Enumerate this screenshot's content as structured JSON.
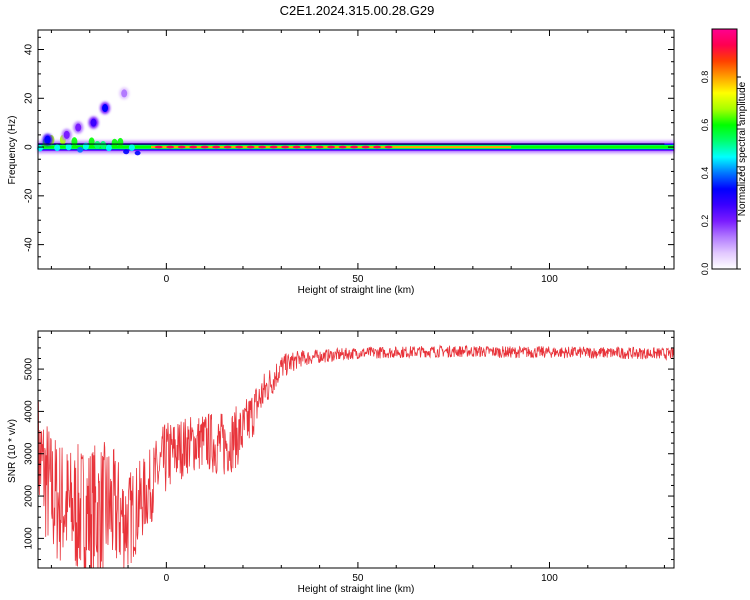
{
  "title": "C2E1.2024.315.00.28.G29",
  "chart_data": [
    {
      "type": "heatmap",
      "xlabel": "Height of straight line (km)",
      "ylabel": "Frequency (Hz)",
      "xlim": [
        -33.5,
        132.5
      ],
      "ylim": [
        -50,
        48
      ],
      "xticks": [
        0,
        50,
        100
      ],
      "yticks": [
        40,
        20,
        0,
        -20,
        -40
      ],
      "grid": false,
      "colorbar": {
        "label": "Normalized spectral amplitude",
        "range": [
          0,
          1
        ],
        "ticks": [
          0.0,
          0.2,
          0.4,
          0.6,
          0.8
        ],
        "colors": [
          "#ffffff",
          "#e2c8ff",
          "#b27aff",
          "#7a1cff",
          "#3a00ff",
          "#0000ff",
          "#0077ff",
          "#00ffff",
          "#00ff70",
          "#00ff00",
          "#a8ff00",
          "#ffff00",
          "#ffa000",
          "#ff4000",
          "#ff0050",
          "#ff0090"
        ]
      },
      "ridge": {
        "frequency": 0,
        "x_start": -33.5,
        "x_end": 132.5
      },
      "blobs": [
        {
          "x": -16,
          "y": 16,
          "value": 0.3
        },
        {
          "x": -19,
          "y": 10,
          "value": 0.25
        },
        {
          "x": -23,
          "y": 8,
          "value": 0.22
        },
        {
          "x": -26,
          "y": 5,
          "value": 0.2
        },
        {
          "x": -11,
          "y": 22,
          "value": 0.1
        },
        {
          "x": -31,
          "y": 3,
          "value": 0.35
        }
      ]
    },
    {
      "type": "line",
      "xlabel": "Height of straight line (km)",
      "ylabel": "SNR (10 * v/v)",
      "xlim": [
        -33.5,
        132.5
      ],
      "ylim": [
        300,
        5900
      ],
      "xticks": [
        0,
        50,
        100
      ],
      "yticks": [
        1000,
        2000,
        3000,
        4000,
        5000
      ],
      "grid": false,
      "series": [
        {
          "color": "#e8333a",
          "x": [
            -33.5,
            -30,
            -25,
            -20,
            -15,
            -10,
            -5,
            0,
            5,
            10,
            15,
            20,
            25,
            30,
            35,
            40,
            50,
            60,
            70,
            80,
            90,
            100,
            110,
            120,
            132.5
          ],
          "mean": [
            3000,
            2000,
            1700,
            1600,
            1700,
            1400,
            2100,
            2900,
            3200,
            3300,
            3200,
            3500,
            4400,
            5050,
            5250,
            5300,
            5380,
            5400,
            5420,
            5420,
            5400,
            5400,
            5390,
            5380,
            5360
          ],
          "amplitude": [
            1500,
            1600,
            1500,
            1700,
            1600,
            1200,
            900,
            900,
            700,
            700,
            800,
            700,
            500,
            300,
            200,
            160,
            140,
            140,
            140,
            140,
            140,
            140,
            140,
            140,
            140
          ]
        }
      ]
    }
  ]
}
